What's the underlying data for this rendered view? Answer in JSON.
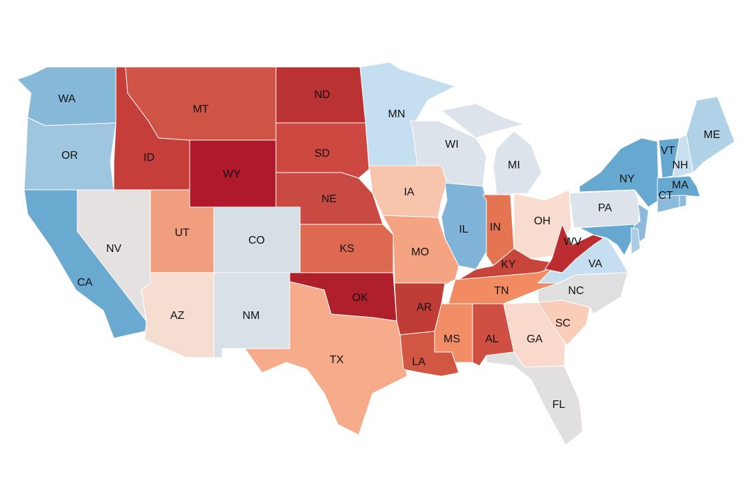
{
  "map": {
    "states": [
      {
        "id": "WA",
        "label": "WA",
        "color": "#86b8d8"
      },
      {
        "id": "OR",
        "label": "OR",
        "color": "#9ec6e0"
      },
      {
        "id": "CA",
        "label": "CA",
        "color": "#6aaad0"
      },
      {
        "id": "NV",
        "label": "NV",
        "color": "#e6e1e1"
      },
      {
        "id": "ID",
        "label": "ID",
        "color": "#c53e3a"
      },
      {
        "id": "MT",
        "label": "MT",
        "color": "#cf5445"
      },
      {
        "id": "WY",
        "label": "WY",
        "color": "#b0192b"
      },
      {
        "id": "UT",
        "label": "UT",
        "color": "#f09e7e"
      },
      {
        "id": "CO",
        "label": "CO",
        "color": "#d6dee6"
      },
      {
        "id": "AZ",
        "label": "AZ",
        "color": "#f5ddd2"
      },
      {
        "id": "NM",
        "label": "NM",
        "color": "#d8e0e8"
      },
      {
        "id": "ND",
        "label": "ND",
        "color": "#bb3232"
      },
      {
        "id": "SD",
        "label": "SD",
        "color": "#cc4840"
      },
      {
        "id": "NE",
        "label": "NE",
        "color": "#c94a42"
      },
      {
        "id": "KS",
        "label": "KS",
        "color": "#dd6a50"
      },
      {
        "id": "OK",
        "label": "OK",
        "color": "#b01f2c"
      },
      {
        "id": "TX",
        "label": "TX",
        "color": "#f6ab8a"
      },
      {
        "id": "MN",
        "label": "MN",
        "color": "#c6dff0"
      },
      {
        "id": "IA",
        "label": "IA",
        "color": "#f7c5ab"
      },
      {
        "id": "MO",
        "label": "MO",
        "color": "#f4a483"
      },
      {
        "id": "AR",
        "label": "AR",
        "color": "#c03c36"
      },
      {
        "id": "LA",
        "label": "LA",
        "color": "#d25743"
      },
      {
        "id": "WI",
        "label": "WI",
        "color": "#dce3ea"
      },
      {
        "id": "IL",
        "label": "IL",
        "color": "#7fb4d8"
      },
      {
        "id": "MI",
        "label": "MI",
        "color": "#dce3ea"
      },
      {
        "id": "IN",
        "label": "IN",
        "color": "#e47452"
      },
      {
        "id": "OH",
        "label": "OH",
        "color": "#f7dccf"
      },
      {
        "id": "KY",
        "label": "KY",
        "color": "#c8453c"
      },
      {
        "id": "TN",
        "label": "TN",
        "color": "#f28a62"
      },
      {
        "id": "MS",
        "label": "MS",
        "color": "#f28e67"
      },
      {
        "id": "AL",
        "label": "AL",
        "color": "#cf4f42"
      },
      {
        "id": "GA",
        "label": "GA",
        "color": "#f8d9cc"
      },
      {
        "id": "FL",
        "label": "FL",
        "color": "#e1dfdf"
      },
      {
        "id": "SC",
        "label": "SC",
        "color": "#f9cdb8"
      },
      {
        "id": "NC",
        "label": "NC",
        "color": "#dfdfdf"
      },
      {
        "id": "VA",
        "label": "VA",
        "color": "#c6dff0"
      },
      {
        "id": "WV",
        "label": "WV",
        "color": "#bb2d30"
      },
      {
        "id": "PA",
        "label": "PA",
        "color": "#dce3ea"
      },
      {
        "id": "NY",
        "label": "NY",
        "color": "#67a8d1"
      },
      {
        "id": "NJ",
        "label": "",
        "color": "#8bbadb"
      },
      {
        "id": "MD",
        "label": "",
        "color": "#67a8d1"
      },
      {
        "id": "DE",
        "label": "",
        "color": "#a9cce4"
      },
      {
        "id": "VT",
        "label": "VT",
        "color": "#67a8d1"
      },
      {
        "id": "NH",
        "label": "NH",
        "color": "#c8e0ef"
      },
      {
        "id": "ME",
        "label": "ME",
        "color": "#b0d2e6"
      },
      {
        "id": "MA",
        "label": "MA",
        "color": "#67a8d1"
      },
      {
        "id": "CT",
        "label": "CT",
        "color": "#8bbadb"
      },
      {
        "id": "RI",
        "label": "",
        "color": "#8bbadb"
      }
    ]
  }
}
